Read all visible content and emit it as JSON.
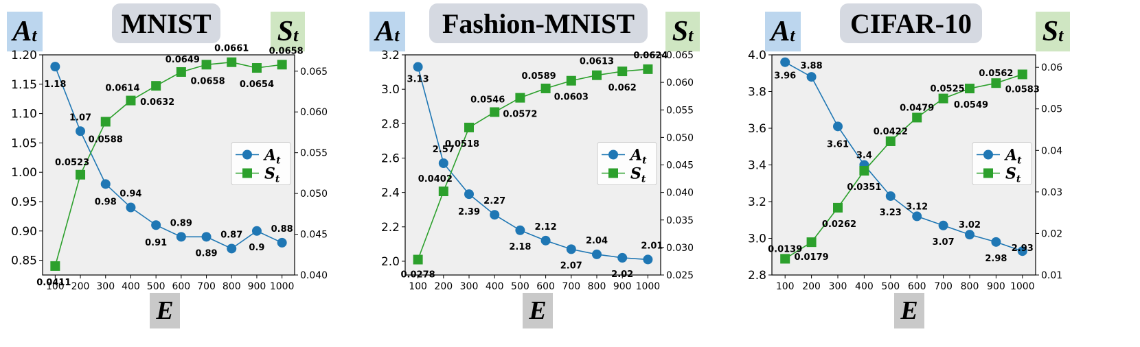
{
  "common": {
    "a_symbol": "A",
    "s_symbol": "S",
    "subscript": "t",
    "x_symbol": "E",
    "colors": {
      "A": "#1f77b4",
      "S": "#2ca02c",
      "plot_bg": "#efefef"
    }
  },
  "chart_data": [
    {
      "title": "MNIST",
      "type": "line",
      "x": [
        100,
        200,
        300,
        400,
        500,
        600,
        700,
        800,
        900,
        1000
      ],
      "xticks": [
        100,
        200,
        300,
        400,
        500,
        600,
        700,
        800,
        900,
        1000
      ],
      "legend": "center-right",
      "grid": false,
      "left_axis": {
        "label": "A_t",
        "ylim": [
          0.825,
          1.2
        ],
        "ticks": [
          "0.85",
          "0.90",
          "0.95",
          "1.00",
          "1.05",
          "1.10",
          "1.15",
          "1.20"
        ]
      },
      "right_axis": {
        "label": "S_t",
        "ylim": [
          0.04,
          0.067
        ],
        "ticks": [
          "0.040",
          "0.045",
          "0.050",
          "0.055",
          "0.060",
          "0.065"
        ]
      },
      "series": [
        {
          "name": "A_t",
          "axis": "left",
          "values": [
            1.18,
            1.07,
            0.98,
            0.94,
            0.91,
            0.89,
            0.89,
            0.87,
            0.9,
            0.88
          ],
          "labels": [
            "1.18",
            "1.07",
            "0.98",
            "0.94",
            "0.91",
            "0.89",
            "0.89",
            "0.87",
            "0.9",
            "0.88"
          ]
        },
        {
          "name": "S_t",
          "axis": "right",
          "values": [
            0.0411,
            0.0523,
            0.0588,
            0.0614,
            0.0632,
            0.0649,
            0.0658,
            0.0661,
            0.0654,
            0.0658
          ],
          "labels": [
            "0.0411",
            "0.0523",
            "0.0588",
            "0.0614",
            "0.0632",
            "0.0649",
            "0.0658",
            "0.0661",
            "0.0654",
            "0.0658"
          ]
        }
      ]
    },
    {
      "title": "Fashion-MNIST",
      "type": "line",
      "x": [
        100,
        200,
        300,
        400,
        500,
        600,
        700,
        800,
        900,
        1000
      ],
      "xticks": [
        100,
        200,
        300,
        400,
        500,
        600,
        700,
        800,
        900,
        1000
      ],
      "legend": "center-right",
      "grid": false,
      "left_axis": {
        "label": "A_t",
        "ylim": [
          1.92,
          3.2
        ],
        "ticks": [
          "2.0",
          "2.2",
          "2.4",
          "2.6",
          "2.8",
          "3.0",
          "3.2"
        ]
      },
      "right_axis": {
        "label": "S_t",
        "ylim": [
          0.025,
          0.065
        ],
        "ticks": [
          "0.025",
          "0.030",
          "0.035",
          "0.040",
          "0.045",
          "0.050",
          "0.055",
          "0.060",
          "0.065"
        ]
      },
      "series": [
        {
          "name": "A_t",
          "axis": "left",
          "values": [
            3.13,
            2.57,
            2.39,
            2.27,
            2.18,
            2.12,
            2.07,
            2.04,
            2.02,
            2.01
          ],
          "labels": [
            "3.13",
            "2.57",
            "2.39",
            "2.27",
            "2.18",
            "2.12",
            "2.07",
            "2.04",
            "2.02",
            "2.01"
          ]
        },
        {
          "name": "S_t",
          "axis": "right",
          "values": [
            0.0278,
            0.0402,
            0.0518,
            0.0546,
            0.0572,
            0.0589,
            0.0603,
            0.0613,
            0.062,
            0.0624
          ],
          "labels": [
            "0.0278",
            "0.0402",
            "0.0518",
            "0.0546",
            "0.0572",
            "0.0589",
            "0.0603",
            "0.0613",
            "0.062",
            "0.0624"
          ]
        }
      ]
    },
    {
      "title": "CIFAR-10",
      "type": "line",
      "x": [
        100,
        200,
        300,
        400,
        500,
        600,
        700,
        800,
        900,
        1000
      ],
      "xticks": [
        100,
        200,
        300,
        400,
        500,
        600,
        700,
        800,
        900,
        1000
      ],
      "legend": "center-right",
      "grid": false,
      "left_axis": {
        "label": "A_t",
        "ylim": [
          2.8,
          4.0
        ],
        "ticks": [
          "2.8",
          "3.0",
          "3.2",
          "3.4",
          "3.6",
          "3.8",
          "4.0"
        ]
      },
      "right_axis": {
        "label": "S_t",
        "ylim": [
          0.01,
          0.063
        ],
        "ticks": [
          "0.01",
          "0.02",
          "0.03",
          "0.04",
          "0.05",
          "0.06"
        ]
      },
      "series": [
        {
          "name": "A_t",
          "axis": "left",
          "values": [
            3.96,
            3.88,
            3.61,
            3.4,
            3.23,
            3.12,
            3.07,
            3.02,
            2.98,
            2.93
          ],
          "labels": [
            "3.96",
            "3.88",
            "3.61",
            "3.4",
            "3.23",
            "3.12",
            "3.07",
            "3.02",
            "2.98",
            "2.93"
          ]
        },
        {
          "name": "S_t",
          "axis": "right",
          "values": [
            0.0139,
            0.0179,
            0.0262,
            0.0351,
            0.0422,
            0.0479,
            0.0525,
            0.0549,
            0.0562,
            0.0583
          ],
          "labels": [
            "0.0139",
            "0.0179",
            "0.0262",
            "0.0351",
            "0.0422",
            "0.0479",
            "0.0525",
            "0.0549",
            "0.0562",
            "0.0583"
          ]
        }
      ]
    }
  ]
}
